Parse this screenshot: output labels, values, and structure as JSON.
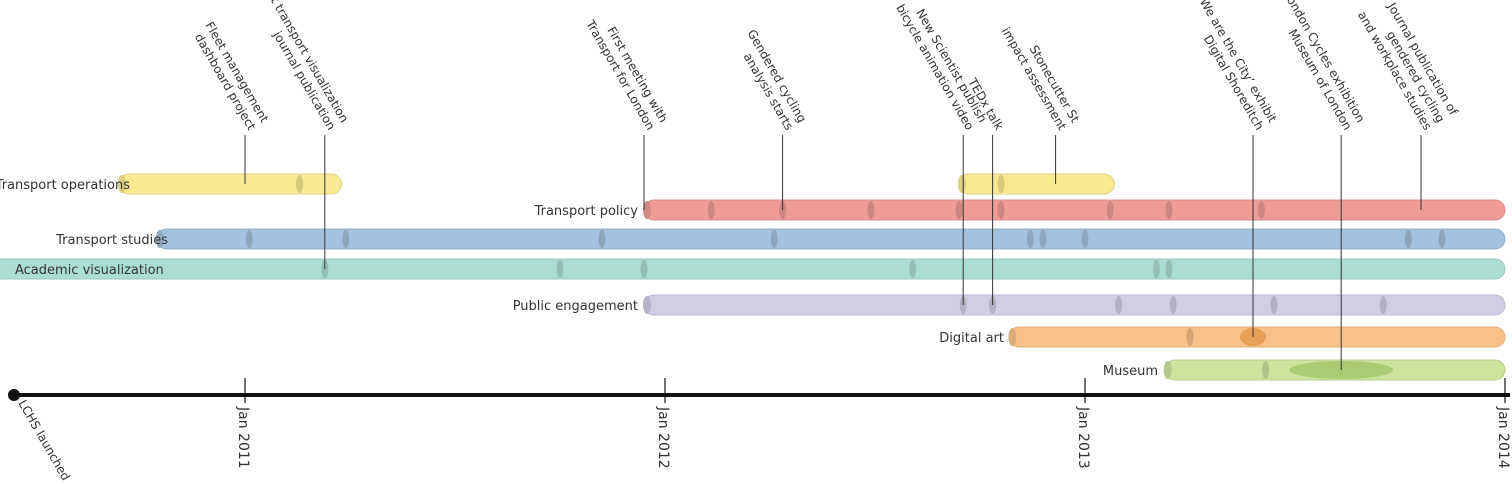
{
  "axis": {
    "ticks": [
      {
        "date": 2011.0,
        "label": "Jan 2011"
      },
      {
        "date": 2012.0,
        "label": "Jan 2012"
      },
      {
        "date": 2013.0,
        "label": "Jan 2013"
      },
      {
        "date": 2014.0,
        "label": "Jan 2014"
      }
    ],
    "milestone": {
      "date": 2010.45,
      "label": "LCHS launched"
    }
  },
  "tracks": [
    {
      "name": "Transport operations",
      "color": "#f9ea91",
      "segments": [
        [
          2010.7,
          2011.23
        ],
        [
          2012.7,
          2013.07
        ]
      ],
      "markers": [
        2011.13,
        2012.8
      ]
    },
    {
      "name": "Transport policy",
      "color": "#ef9c97",
      "segments": [
        [
          2011.95,
          2014.0
        ]
      ],
      "markers": [
        2012.11,
        2012.28,
        2012.49,
        2012.7,
        2012.8,
        2013.06,
        2013.2,
        2013.42
      ]
    },
    {
      "name": "Transport studies",
      "color": "#a4c1dd",
      "segments": [
        [
          2010.79,
          2014.0
        ]
      ],
      "markers": [
        2011.01,
        2011.24,
        2011.85,
        2012.26,
        2012.87,
        2012.9,
        2013.0,
        2013.77,
        2013.85
      ]
    },
    {
      "name": "Academic visualization",
      "color": "#acddd2",
      "segments": [
        [
          2010.2,
          2014.0
        ]
      ],
      "markers": [
        2011.19,
        2011.75,
        2011.95,
        2012.59,
        2013.17,
        2013.2
      ]
    },
    {
      "name": "Public engagement",
      "color": "#d0cde5",
      "segments": [
        [
          2011.95,
          2014.0
        ]
      ],
      "markers": [
        2012.71,
        2012.78,
        2013.08,
        2013.21,
        2013.45,
        2013.71
      ]
    },
    {
      "name": "Digital art",
      "color": "#f8c188",
      "segments": [
        [
          2012.82,
          2014.0
        ]
      ],
      "markers": [
        2013.25,
        2013.4
      ]
    },
    {
      "name": "Museum",
      "color": "#cde49e",
      "segments": [
        [
          2013.19,
          2014.0
        ]
      ],
      "markers": [
        2013.43
      ]
    }
  ],
  "events": [
    {
      "lines": [
        "Fleet management",
        "dashboard project"
      ],
      "date": 2011.0,
      "track": 0
    },
    {
      "lines": [
        "First transport visualization",
        "journal publication"
      ],
      "date": 2011.19,
      "track": 3
    },
    {
      "lines": [
        "First meeting with",
        "Transport for London"
      ],
      "date": 2011.95,
      "track": 1
    },
    {
      "lines": [
        "Gendered cycling",
        "analysis starts"
      ],
      "date": 2012.28,
      "track": 1
    },
    {
      "lines": [
        "New Scientist publish",
        "bicycle animation video"
      ],
      "date": 2012.71,
      "track": 4
    },
    {
      "lines": [
        "TEDx talk"
      ],
      "date": 2012.78,
      "track": 4
    },
    {
      "lines": [
        "Stonecutter St",
        "impact assessment"
      ],
      "date": 2012.93,
      "track": 0
    },
    {
      "lines": [
        "‘We are the City’ exhibit",
        "Digital Shoreditch"
      ],
      "date": 2013.4,
      "track": 5
    },
    {
      "lines": [
        "London Cycles exhibition",
        "Museum of London"
      ],
      "date": 2013.61,
      "track": 6
    },
    {
      "lines": [
        "Journal publication of",
        "gendered cycling",
        "and workplace studies"
      ],
      "date": 2013.8,
      "track": 1
    }
  ]
}
